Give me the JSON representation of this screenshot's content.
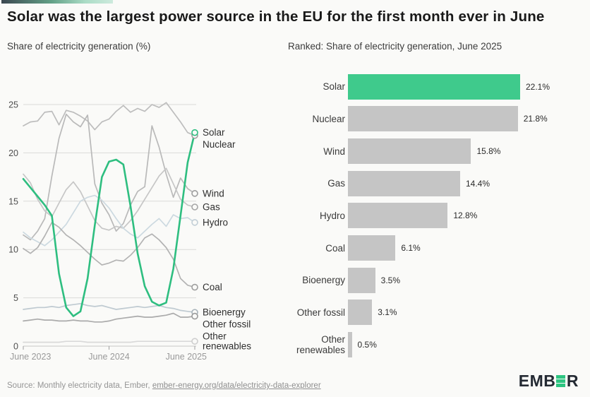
{
  "header": {
    "title": "Solar was the largest power source in the EU for the first month ever in June"
  },
  "accent": {
    "colors": [
      "#3b4750",
      "#63a187",
      "#abdcc6",
      "#cdeadd"
    ]
  },
  "chart_data": [
    {
      "type": "line",
      "title": "Share of electricity generation (%)",
      "ylabel": "Share of electricity generation (%)",
      "ylim": [
        0,
        25
      ],
      "y_ticks": [
        0,
        5,
        10,
        15,
        20,
        25
      ],
      "x_tick_labels": [
        "June 2023",
        "June 2024",
        "June 2025"
      ],
      "x_tick_indices": [
        0,
        12,
        24
      ],
      "n_points": 25,
      "grid": "horizontal",
      "highlight_color": "#2ebe80",
      "series": [
        {
          "id": "nuclear",
          "name": "Nuclear",
          "label_lines": [
            "Nuclear"
          ],
          "color": "#bdbdbd",
          "marker_color": "#9e9e9e",
          "end_value": 21.8,
          "values": [
            22.8,
            23.2,
            23.3,
            24.2,
            24.3,
            22.9,
            24.4,
            24.2,
            23.8,
            23.3,
            22.4,
            23.2,
            23.5,
            24.3,
            24.9,
            24.2,
            24.6,
            24.3,
            25.0,
            24.7,
            25.2,
            24.2,
            23.2,
            22.1,
            21.8
          ]
        },
        {
          "id": "wind",
          "name": "Wind",
          "label_lines": [
            "Wind"
          ],
          "color": "#b9b9b9",
          "marker_color": "#9e9e9e",
          "end_value": 15.8,
          "values": [
            11.5,
            11.0,
            11.9,
            13.2,
            17.6,
            21.5,
            24.0,
            23.2,
            22.7,
            23.9,
            16.8,
            14.8,
            13.6,
            11.9,
            12.7,
            14.6,
            16.0,
            16.5,
            22.8,
            20.6,
            17.8,
            15.4,
            17.4,
            16.3,
            15.8
          ]
        },
        {
          "id": "gas",
          "name": "Gas",
          "label_lines": [
            "Gas"
          ],
          "color": "#c6c6c6",
          "marker_color": "#a6a6a6",
          "end_value": 14.4,
          "values": [
            17.8,
            16.9,
            15.2,
            14.0,
            13.4,
            14.8,
            16.2,
            17.0,
            16.0,
            14.5,
            13.0,
            12.2,
            12.0,
            12.4,
            12.2,
            13.0,
            14.0,
            15.2,
            16.4,
            17.6,
            18.4,
            16.8,
            15.2,
            14.6,
            14.4
          ]
        },
        {
          "id": "hydro",
          "name": "Hydro",
          "label_lines": [
            "Hydro"
          ],
          "color": "#ccd9e0",
          "marker_color": "#c2ced6",
          "end_value": 12.8,
          "values": [
            11.8,
            11.2,
            10.8,
            10.4,
            11.0,
            11.8,
            12.6,
            13.8,
            15.0,
            15.4,
            15.6,
            15.1,
            14.3,
            13.2,
            12.2,
            11.6,
            11.2,
            11.9,
            12.6,
            13.2,
            12.4,
            13.6,
            13.2,
            13.3,
            12.8
          ]
        },
        {
          "id": "coal",
          "name": "Coal",
          "label_lines": [
            "Coal"
          ],
          "color": "#b3b3b3",
          "marker_color": "#9e9e9e",
          "end_value": 6.1,
          "values": [
            10.1,
            9.6,
            10.2,
            11.4,
            12.8,
            12.3,
            11.5,
            11.0,
            10.4,
            9.7,
            9.0,
            8.4,
            8.6,
            8.9,
            8.8,
            9.4,
            10.2,
            11.2,
            11.6,
            11.0,
            10.2,
            9.0,
            7.0,
            6.3,
            6.1
          ]
        },
        {
          "id": "bioenergy",
          "name": "Bioenergy",
          "label_lines": [
            "Bioenergy"
          ],
          "color": "#bfcad1",
          "marker_color": "#a8b3ba",
          "end_value": 3.5,
          "values": [
            3.8,
            3.9,
            4.0,
            4.0,
            4.1,
            4.0,
            4.2,
            4.3,
            4.4,
            4.2,
            4.1,
            4.2,
            4.0,
            3.8,
            3.9,
            4.0,
            4.1,
            4.0,
            4.1,
            4.2,
            4.0,
            3.9,
            3.7,
            3.6,
            3.5
          ]
        },
        {
          "id": "other-fossil",
          "name": "Other fossil",
          "label_lines": [
            "Other fossil"
          ],
          "color": "#ababab",
          "marker_color": "#9a9a9a",
          "end_value": 3.1,
          "values": [
            2.6,
            2.7,
            2.8,
            2.7,
            2.7,
            2.6,
            2.6,
            2.7,
            2.6,
            2.6,
            2.5,
            2.5,
            2.6,
            2.8,
            2.9,
            3.0,
            3.1,
            3.0,
            3.0,
            3.1,
            3.2,
            3.4,
            3.0,
            3.0,
            3.1
          ]
        },
        {
          "id": "other-renewables",
          "name": "Other renewables",
          "label_lines": [
            "Other",
            "renewables"
          ],
          "color": "#d9d9d9",
          "marker_color": "#cfcfcf",
          "end_value": 0.5,
          "values": [
            0.4,
            0.4,
            0.4,
            0.4,
            0.4,
            0.4,
            0.5,
            0.5,
            0.5,
            0.4,
            0.4,
            0.4,
            0.4,
            0.4,
            0.4,
            0.4,
            0.5,
            0.5,
            0.5,
            0.5,
            0.5,
            0.5,
            0.5,
            0.5,
            0.5
          ]
        },
        {
          "id": "solar",
          "name": "Solar",
          "label_lines": [
            "Solar"
          ],
          "color": "#2ebe80",
          "marker_color": "#2ebe80",
          "end_value": 22.1,
          "highlight": true,
          "values": [
            17.3,
            16.4,
            15.5,
            14.6,
            13.5,
            7.5,
            4.0,
            3.1,
            3.6,
            7.0,
            12.5,
            17.5,
            19.1,
            19.3,
            18.8,
            14.5,
            9.6,
            6.2,
            4.6,
            4.2,
            4.5,
            8.0,
            13.5,
            19.0,
            22.1
          ]
        }
      ]
    },
    {
      "type": "bar",
      "title": "Ranked: Share of electricity generation, June 2025",
      "orientation": "horizontal",
      "xlim": [
        0,
        24
      ],
      "categories": [
        "Solar",
        "Nuclear",
        "Wind",
        "Gas",
        "Hydro",
        "Coal",
        "Bioenergy",
        "Other fossil",
        "Other renewables"
      ],
      "values": [
        22.1,
        21.8,
        15.8,
        14.4,
        12.8,
        6.1,
        3.5,
        3.1,
        0.5
      ],
      "value_labels": [
        "22.1%",
        "21.8%",
        "15.8%",
        "14.4%",
        "12.8%",
        "6.1%",
        "3.5%",
        "3.1%",
        "0.5%"
      ],
      "bar_colors": [
        "#3fca8c",
        "#c5c5c5",
        "#c5c5c5",
        "#c5c5c5",
        "#c5c5c5",
        "#c5c5c5",
        "#c5c5c5",
        "#c5c5c5",
        "#c5c5c5"
      ]
    }
  ],
  "footer": {
    "source_prefix": "Source: Monthly electricity data, Ember, ",
    "source_link": "ember-energy.org/data/electricity-data-explorer"
  },
  "logo": {
    "prefix": "EMB",
    "suffix": "R",
    "accent_color": "#2ec581"
  }
}
